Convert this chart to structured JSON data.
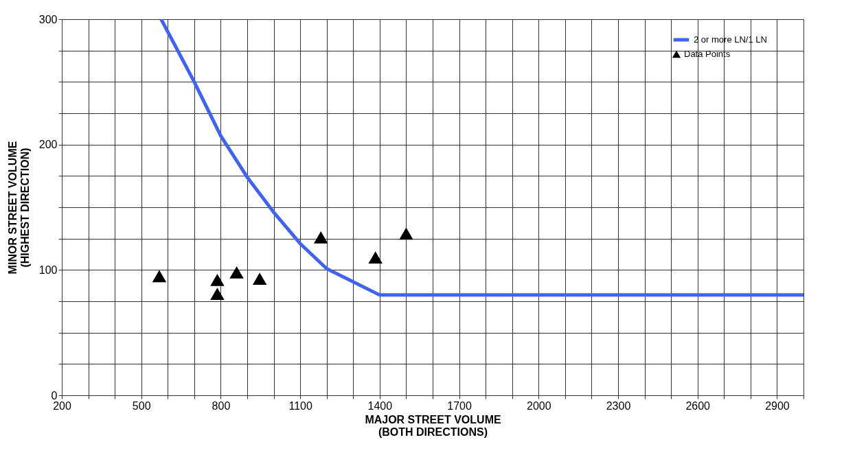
{
  "chart_data": {
    "type": "line",
    "xlabel": "MAJOR STREET VOLUME\n(BOTH DIRECTIONS)",
    "ylabel": "MINOR STREET VOLUME\n(HIGHEST DIRECTION)",
    "series": [
      {
        "name": "2 or more LN/1 LN",
        "type": "line",
        "color": "#3f64f5",
        "x": [
          575,
          700,
          800,
          900,
          1000,
          1100,
          1200,
          1400,
          3000
        ],
        "values": [
          300,
          250,
          207,
          174,
          146,
          121,
          101,
          80,
          80
        ]
      },
      {
        "name": "Data Points",
        "type": "scatter",
        "color": "#000000",
        "marker": "triangle",
        "x": [
          568,
          787,
          787,
          860,
          947,
          1178,
          1384,
          1500
        ],
        "values": [
          95,
          92,
          81,
          98,
          93,
          126,
          110,
          129
        ]
      }
    ],
    "xlim": [
      200,
      3000
    ],
    "ylim": [
      0,
      300
    ],
    "xticks": [
      200,
      {
        "value": 300,
        "label": null
      },
      {
        "value": 400,
        "label": null
      },
      500,
      {
        "value": 600,
        "label": null
      },
      {
        "value": 700,
        "label": null
      },
      800,
      {
        "value": 900,
        "label": null
      },
      {
        "value": 1000,
        "label": null
      },
      1100,
      {
        "value": 1200,
        "label": null
      },
      {
        "value": 1300,
        "label": null
      },
      1400,
      {
        "value": 1500,
        "label": null
      },
      {
        "value": 1600,
        "label": null
      },
      1700,
      {
        "value": 1800,
        "label": null
      },
      {
        "value": 1900,
        "label": null
      },
      2000,
      {
        "value": 2100,
        "label": null
      },
      {
        "value": 2200,
        "label": null
      },
      2300,
      {
        "value": 2400,
        "label": null
      },
      {
        "value": 2500,
        "label": null
      },
      2600,
      {
        "value": 2700,
        "label": null
      },
      {
        "value": 2800,
        "label": null
      },
      2900,
      {
        "value": 3000,
        "label": null
      }
    ],
    "yticks": [
      0,
      {
        "value": 25,
        "label": null
      },
      {
        "value": 50,
        "label": null
      },
      {
        "value": 75,
        "label": null
      },
      100,
      {
        "value": 125,
        "label": null
      },
      {
        "value": 150,
        "label": null
      },
      {
        "value": 175,
        "label": null
      },
      200,
      {
        "value": 225,
        "label": null
      },
      {
        "value": 250,
        "label": null
      },
      {
        "value": 275,
        "label": null
      },
      300
    ],
    "grid": true,
    "legend": "top right"
  }
}
